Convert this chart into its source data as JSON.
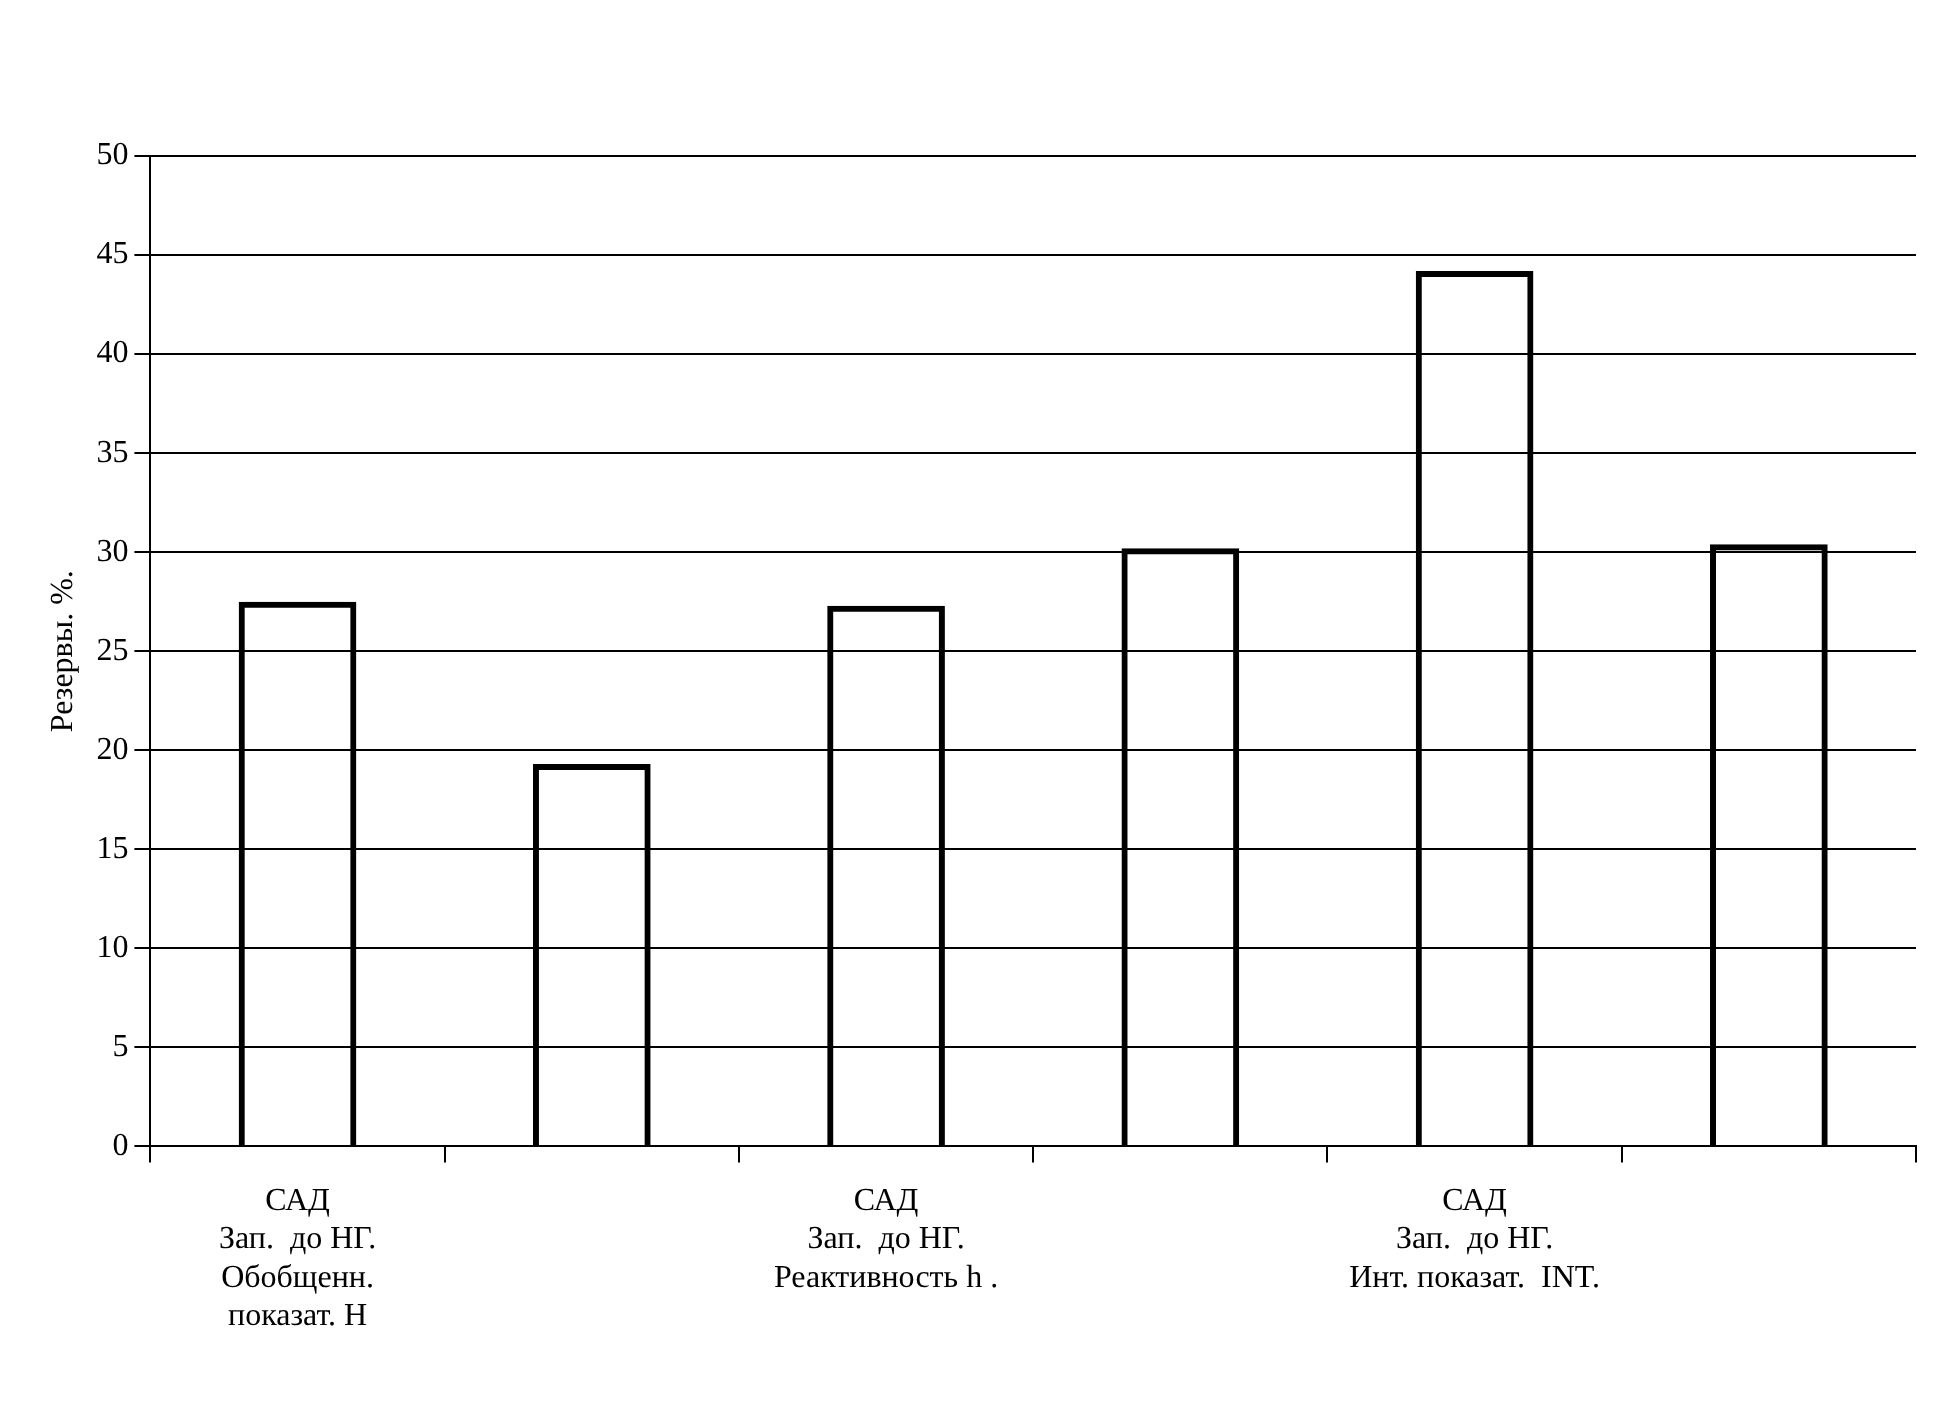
{
  "chart_data": {
    "type": "bar",
    "ylabel": "Резервы. %.",
    "categories": [
      "САД\nЗап.  до НГ.\nОбобщенн.\nпоказат. H",
      null,
      "САД\nЗап.  до НГ.\nРеактивность h .",
      null,
      "САД\nЗап.  до НГ.\nИнт. показат.  INT.",
      null
    ],
    "values": [
      27.5,
      19.3,
      27.3,
      30.2,
      44.2,
      30.4
    ],
    "color": "#000000",
    "ylim": [
      0,
      50
    ],
    "yticks": [
      0,
      5,
      10,
      15,
      20,
      25,
      30,
      35,
      40,
      45,
      50
    ],
    "grid": "y",
    "legend": false
  }
}
